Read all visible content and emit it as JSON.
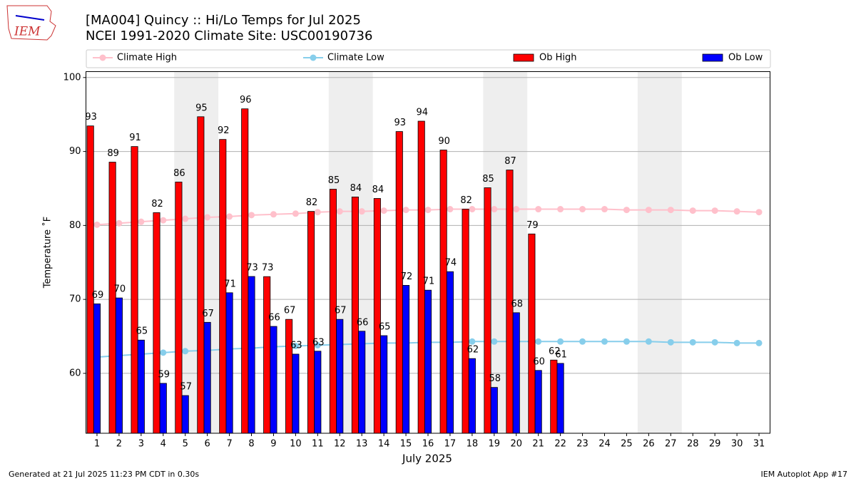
{
  "chart_data": {
    "type": "bar",
    "title_lines": [
      "[MA004] Quincy  :: Hi/Lo Temps for Jul 2025",
      "NCEI 1991-2020 Climate Site: USC00190736"
    ],
    "logo_text": "IEM",
    "xlabel": "July 2025",
    "ylabel": "Temperature ˚F",
    "footer_left": "Generated at 21 Jul 2025 11:23 PM CDT in 0.30s",
    "footer_right": "IEM Autoplot App #17",
    "x": [
      1,
      2,
      3,
      4,
      5,
      6,
      7,
      8,
      9,
      10,
      11,
      12,
      13,
      14,
      15,
      16,
      17,
      18,
      19,
      20,
      21,
      22,
      23,
      24,
      25,
      26,
      27,
      28,
      29,
      30,
      31
    ],
    "xlim": [
      0.5,
      31.5
    ],
    "xticks": [
      1,
      2,
      3,
      4,
      5,
      6,
      7,
      8,
      9,
      10,
      11,
      12,
      13,
      14,
      15,
      16,
      17,
      18,
      19,
      20,
      21,
      22,
      23,
      24,
      25,
      26,
      27,
      28,
      29,
      30,
      31
    ],
    "ylim": [
      51.9,
      100.8
    ],
    "yticks": [
      60,
      70,
      80,
      90,
      100
    ],
    "grid": true,
    "shaded_x": [
      [
        4.5,
        6.5
      ],
      [
        11.5,
        13.5
      ],
      [
        18.5,
        20.5
      ],
      [
        25.5,
        27.5
      ]
    ],
    "shade_color": "#eeeeee",
    "series": [
      {
        "name": "Climate High",
        "type": "line",
        "color": "pink",
        "values": [
          80.1,
          80.3,
          80.5,
          80.7,
          80.9,
          81.1,
          81.2,
          81.4,
          81.5,
          81.6,
          81.8,
          81.9,
          81.9,
          82.0,
          82.1,
          82.1,
          82.2,
          82.2,
          82.2,
          82.2,
          82.2,
          82.2,
          82.2,
          82.2,
          82.1,
          82.1,
          82.1,
          82.0,
          82.0,
          81.9,
          81.8
        ]
      },
      {
        "name": "Climate Low",
        "type": "line",
        "color": "skyblue",
        "values": [
          62.2,
          62.4,
          62.6,
          62.8,
          63.0,
          63.1,
          63.3,
          63.4,
          63.6,
          63.7,
          63.8,
          63.9,
          64.0,
          64.1,
          64.1,
          64.2,
          64.2,
          64.3,
          64.3,
          64.3,
          64.3,
          64.3,
          64.3,
          64.3,
          64.3,
          64.3,
          64.2,
          64.2,
          64.2,
          64.1,
          64.1
        ]
      },
      {
        "name": "Ob High",
        "type": "bar",
        "color": "red",
        "values": [
          93.46,
          88.56,
          90.67,
          81.73,
          85.87,
          94.7,
          91.63,
          95.77,
          73.08,
          67.3,
          81.9,
          84.9,
          83.85,
          83.65,
          92.7,
          94.1,
          90.2,
          82.2,
          85.1,
          87.5,
          78.85,
          61.8,
          null,
          null,
          null,
          null,
          null,
          null,
          null,
          null,
          null
        ],
        "value_labels": [
          "93",
          "89",
          "91",
          "82",
          "86",
          "95",
          "92",
          "96",
          "73",
          "67",
          "82",
          "85",
          "84",
          "84",
          "93",
          "94",
          "90",
          "82",
          "85",
          "87",
          "79",
          "62",
          null,
          null,
          null,
          null,
          null,
          null,
          null,
          null,
          null
        ]
      },
      {
        "name": "Ob Low",
        "type": "bar",
        "color": "blue",
        "values": [
          69.4,
          70.2,
          64.5,
          58.65,
          57.0,
          66.9,
          70.9,
          73.1,
          66.35,
          62.6,
          63.0,
          67.3,
          65.7,
          65.1,
          71.9,
          71.25,
          73.75,
          62.0,
          58.1,
          68.2,
          60.4,
          61.35,
          null,
          null,
          null,
          null,
          null,
          null,
          null,
          null,
          null
        ],
        "value_labels": [
          "69",
          "70",
          "65",
          "59",
          "57",
          "67",
          "71",
          "73",
          "66",
          "63",
          "63",
          "67",
          "66",
          "65",
          "72",
          "71",
          "74",
          "62",
          "58",
          "68",
          "60",
          "61",
          null,
          null,
          null,
          null,
          null,
          null,
          null,
          null,
          null
        ]
      }
    ]
  }
}
